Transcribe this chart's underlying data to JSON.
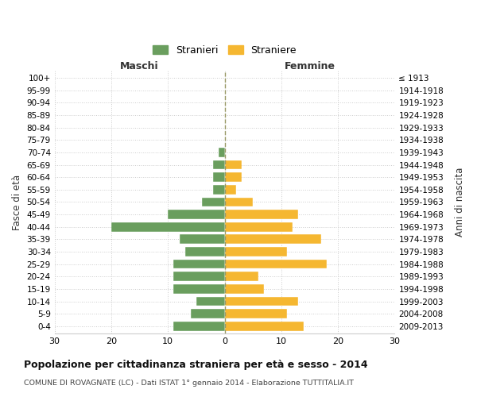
{
  "age_groups": [
    "100+",
    "95-99",
    "90-94",
    "85-89",
    "80-84",
    "75-79",
    "70-74",
    "65-69",
    "60-64",
    "55-59",
    "50-54",
    "45-49",
    "40-44",
    "35-39",
    "30-34",
    "25-29",
    "20-24",
    "15-19",
    "10-14",
    "5-9",
    "0-4"
  ],
  "birth_years": [
    "≤ 1913",
    "1914-1918",
    "1919-1923",
    "1924-1928",
    "1929-1933",
    "1934-1938",
    "1939-1943",
    "1944-1948",
    "1949-1953",
    "1954-1958",
    "1959-1963",
    "1964-1968",
    "1969-1973",
    "1974-1978",
    "1979-1983",
    "1984-1988",
    "1989-1993",
    "1994-1998",
    "1999-2003",
    "2004-2008",
    "2009-2013"
  ],
  "maschi": [
    0,
    0,
    0,
    0,
    0,
    0,
    1,
    2,
    2,
    2,
    4,
    10,
    20,
    8,
    7,
    9,
    9,
    9,
    5,
    6,
    9
  ],
  "femmine": [
    0,
    0,
    0,
    0,
    0,
    0,
    0,
    3,
    3,
    2,
    5,
    13,
    12,
    17,
    11,
    18,
    6,
    7,
    13,
    11,
    14
  ],
  "maschi_color": "#6a9e5e",
  "femmine_color": "#f5b731",
  "background_color": "#ffffff",
  "grid_color": "#cccccc",
  "dashed_line_color": "#999966",
  "title": "Popolazione per cittadinanza straniera per età e sesso - 2014",
  "subtitle": "COMUNE DI ROVAGNATE (LC) - Dati ISTAT 1° gennaio 2014 - Elaborazione TUTTITALIA.IT",
  "xlabel_left": "Maschi",
  "xlabel_right": "Femmine",
  "ylabel_left": "Fasce di età",
  "ylabel_right": "Anni di nascita",
  "legend_maschi": "Stranieri",
  "legend_femmine": "Straniere",
  "xlim": 30
}
